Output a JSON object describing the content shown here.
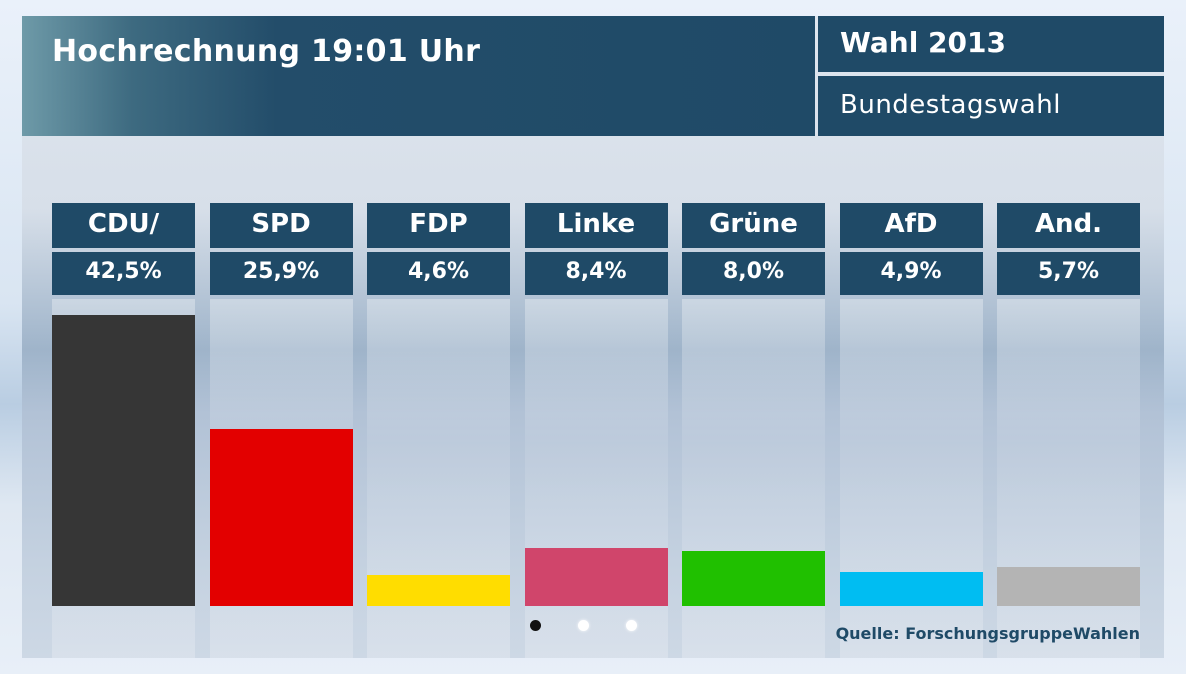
{
  "header": {
    "title": "Hochrechnung 19:01 Uhr",
    "election": "Wahl 2013",
    "type": "Bundestagswahl"
  },
  "source": "Quelle: ForschungsgruppeWahlen",
  "chart_data": {
    "type": "bar",
    "categories": [
      "CDU/",
      "SPD",
      "FDP",
      "Linke",
      "Grüne",
      "AfD",
      "And."
    ],
    "values": [
      42.5,
      25.9,
      4.6,
      8.4,
      8.0,
      4.9,
      5.7
    ],
    "value_labels": [
      "42,5%",
      "25,9%",
      "4,6%",
      "8,4%",
      "8,0%",
      "4,9%",
      "5,7%"
    ],
    "colors": [
      "#363636",
      "#e30000",
      "#ffdd00",
      "#d0456b",
      "#20c000",
      "#00bdf2",
      "#b4b4b4"
    ],
    "ylim": [
      0,
      45
    ]
  },
  "pager": {
    "count": 3,
    "active": 0
  }
}
